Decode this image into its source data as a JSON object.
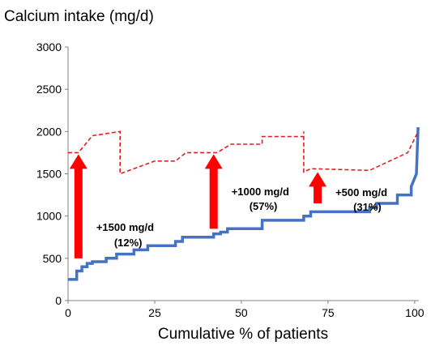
{
  "chart_data": {
    "type": "line",
    "title": "",
    "ylabel": "Calcium intake (mg/d)",
    "xlabel": "Cumulative  % of patients",
    "xlim": [
      0,
      100
    ],
    "ylim": [
      0,
      3000
    ],
    "xticks": [
      "0",
      "25",
      "50",
      "75",
      "100"
    ],
    "yticks": [
      "0",
      "500",
      "1000",
      "1500",
      "2000",
      "2500",
      "3000"
    ],
    "grid": false,
    "series": [
      {
        "color": "#4472c4",
        "style": "solid-step",
        "points": [
          [
            0,
            250
          ],
          [
            2.5,
            250
          ],
          [
            2.5,
            350
          ],
          [
            4,
            350
          ],
          [
            4,
            400
          ],
          [
            5.5,
            400
          ],
          [
            5.5,
            440
          ],
          [
            7,
            440
          ],
          [
            7,
            460
          ],
          [
            11,
            460
          ],
          [
            11,
            500
          ],
          [
            14,
            500
          ],
          [
            14,
            550
          ],
          [
            19,
            550
          ],
          [
            19,
            600
          ],
          [
            23,
            600
          ],
          [
            23,
            650
          ],
          [
            31,
            650
          ],
          [
            31,
            700
          ],
          [
            33,
            700
          ],
          [
            33,
            750
          ],
          [
            42,
            750
          ],
          [
            42,
            790
          ],
          [
            44,
            790
          ],
          [
            44,
            810
          ],
          [
            46,
            810
          ],
          [
            46,
            850
          ],
          [
            56,
            850
          ],
          [
            56,
            950
          ],
          [
            68,
            950
          ],
          [
            68,
            1000
          ],
          [
            70,
            1000
          ],
          [
            70,
            1050
          ],
          [
            87,
            1050
          ],
          [
            87,
            1100
          ],
          [
            89,
            1100
          ],
          [
            89,
            1150
          ],
          [
            95,
            1150
          ],
          [
            95,
            1250
          ],
          [
            99,
            1250
          ],
          [
            99,
            1350
          ],
          [
            100.5,
            1500
          ],
          [
            100.8,
            1850
          ],
          [
            101,
            2050
          ]
        ]
      },
      {
        "color": "#e02020",
        "style": "dashed",
        "points": [
          [
            0,
            1750
          ],
          [
            3,
            1750
          ],
          [
            7,
            1950
          ],
          [
            15,
            2000
          ],
          [
            15,
            1500
          ],
          [
            25,
            1650
          ],
          [
            31,
            1650
          ],
          [
            34,
            1750
          ],
          [
            43,
            1750
          ],
          [
            47,
            1850
          ],
          [
            56,
            1850
          ],
          [
            56,
            1940
          ],
          [
            68,
            1940
          ],
          [
            68,
            2000
          ],
          [
            68,
            1520
          ],
          [
            70,
            1560
          ],
          [
            87,
            1540
          ],
          [
            98,
            1750
          ],
          [
            101,
            2000
          ]
        ]
      }
    ],
    "annotations": [
      {
        "label": "+1500 mg/d",
        "pct": "(12%)",
        "x": 3,
        "from": 500,
        "to": 1750
      },
      {
        "label": "+1000 mg/d",
        "pct": "(57%)",
        "x": 42,
        "from": 850,
        "to": 1750
      },
      {
        "label": "+500 mg/d",
        "pct": "(31%)",
        "x": 72,
        "from": 1150,
        "to": 1540
      }
    ]
  }
}
